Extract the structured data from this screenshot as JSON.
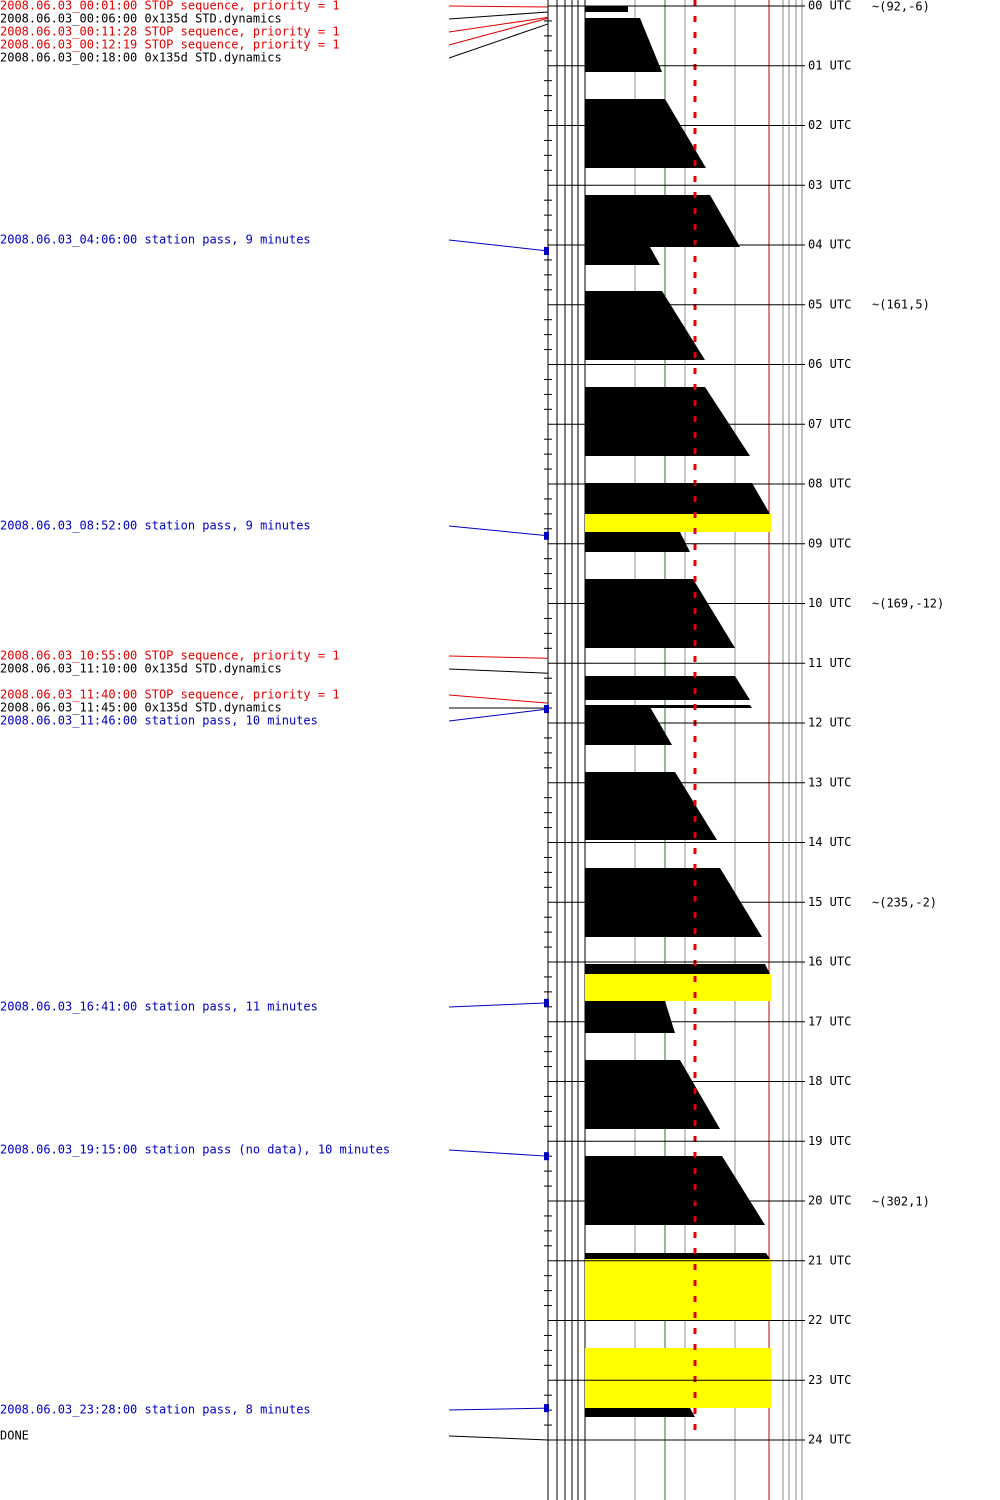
{
  "events": [
    {
      "text": "2008.06.03_00:01:00 STOP sequence, priority = 1",
      "color": "#e00000"
    },
    {
      "text": "2008.06.03_00:06:00 0x135d STD.dynamics",
      "color": "#000000"
    },
    {
      "text": "2008.06.03_00:11:28 STOP sequence, priority = 1",
      "color": "#e00000"
    },
    {
      "text": "2008.06.03_00:12:19 STOP sequence, priority = 1",
      "color": "#e00000"
    },
    {
      "text": "2008.06.03_00:18:00 0x135d STD.dynamics",
      "color": "#000000"
    },
    {
      "text": "2008.06.03_04:06:00 station pass, 9 minutes",
      "color": "#0000c0"
    },
    {
      "text": "2008.06.03_08:52:00 station pass, 9 minutes",
      "color": "#0000c0"
    },
    {
      "text": "2008.06.03_10:55:00 STOP sequence, priority = 1",
      "color": "#e00000"
    },
    {
      "text": "2008.06.03_11:10:00 0x135d STD.dynamics",
      "color": "#000000"
    },
    {
      "text": "2008.06.03_11:40:00 STOP sequence, priority = 1",
      "color": "#e00000"
    },
    {
      "text": "2008.06.03_11:45:00 0x135d STD.dynamics",
      "color": "#000000"
    },
    {
      "text": "2008.06.03_11:46:00 station pass, 10 minutes",
      "color": "#0000c0"
    },
    {
      "text": "2008.06.03_16:41:00 station pass, 11 minutes",
      "color": "#0000c0"
    },
    {
      "text": "2008.06.03_19:15:00 station pass (no data), 10 minutes",
      "color": "#0000c0"
    },
    {
      "text": "2008.06.03_23:28:00 station pass, 8 minutes",
      "color": "#0000c0"
    }
  ],
  "done": "DONE",
  "hours": [
    "00 UTC",
    "01 UTC",
    "02 UTC",
    "03 UTC",
    "04 UTC",
    "05 UTC",
    "06 UTC",
    "07 UTC",
    "08 UTC",
    "09 UTC",
    "10 UTC",
    "11 UTC",
    "12 UTC",
    "13 UTC",
    "14 UTC",
    "15 UTC",
    "16 UTC",
    "17 UTC",
    "18 UTC",
    "19 UTC",
    "20 UTC",
    "21 UTC",
    "22 UTC",
    "23 UTC",
    "24 UTC"
  ],
  "annotations": [
    "~(92,-6)",
    "~(161,5)",
    "~(169,-12)",
    "~(235,-2)",
    "~(302,1)"
  ]
}
